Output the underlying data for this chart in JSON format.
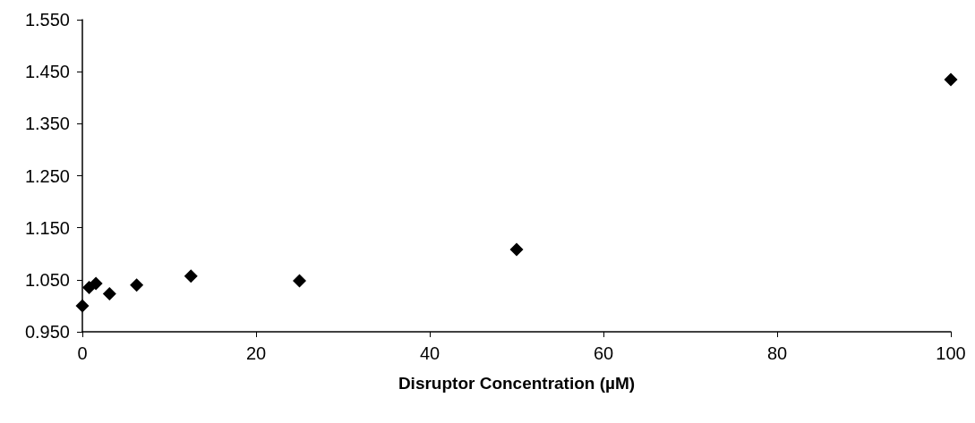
{
  "chart_data": {
    "type": "scatter",
    "xlabel": "Disruptor Concentration (µM)",
    "x": [
      0,
      0.78,
      1.56,
      3.125,
      6.25,
      12.5,
      25,
      50,
      100
    ],
    "values": [
      1.0,
      1.035,
      1.043,
      1.023,
      1.04,
      1.057,
      1.048,
      1.108,
      1.435
    ],
    "color": "#000000",
    "marker": "diamond",
    "xlim": [
      0,
      100
    ],
    "xticks": [
      0,
      20,
      40,
      60,
      80,
      100
    ],
    "ylim": [
      0.95,
      1.55
    ],
    "yticks": [
      {
        "value": 0.95,
        "label": "0.950"
      },
      {
        "value": 1.05,
        "label": "1.050"
      },
      {
        "value": 1.15,
        "label": "1.150"
      },
      {
        "value": 1.25,
        "label": "1.250"
      },
      {
        "value": 1.35,
        "label": "1.350"
      },
      {
        "value": 1.45,
        "label": "1.450"
      },
      {
        "value": 1.55,
        "label": "1.550"
      }
    ],
    "grid": false
  }
}
